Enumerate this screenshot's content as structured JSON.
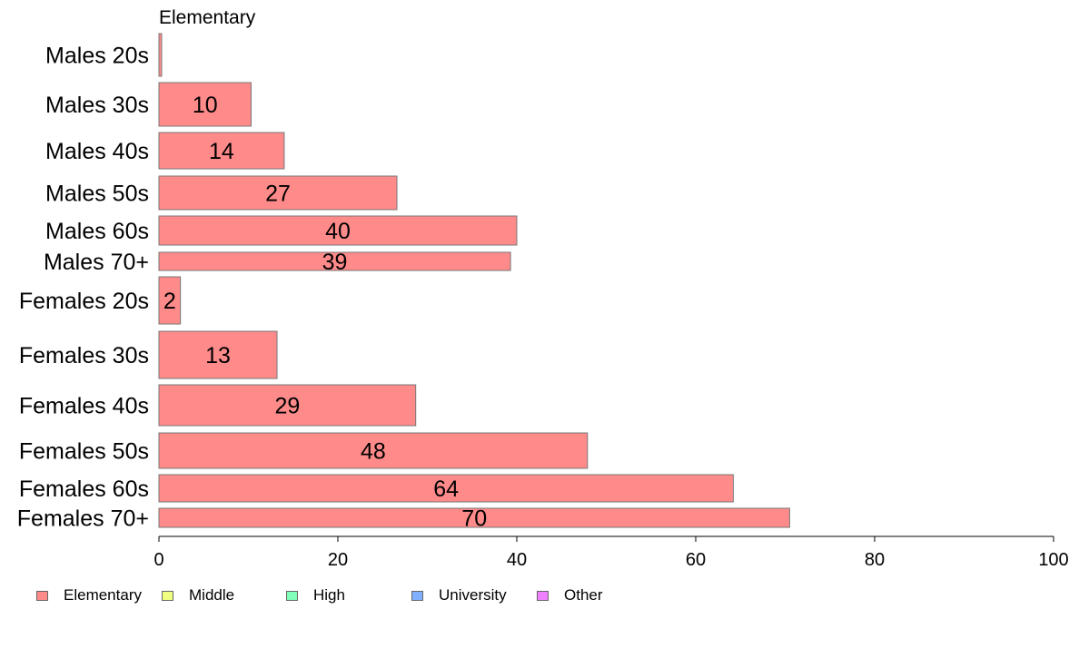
{
  "chart_data": {
    "type": "bar",
    "orientation": "horizontal",
    "title": "Elementary",
    "categories": [
      "Males 20s",
      "Males 30s",
      "Males 40s",
      "Males 50s",
      "Males 60s",
      "Males 70+",
      "Females 20s",
      "Females 30s",
      "Females 40s",
      "Females 50s",
      "Females 60s",
      "Females 70+"
    ],
    "values": [
      0.3,
      10.3,
      14,
      26.6,
      40,
      39.3,
      2.4,
      13.2,
      28.7,
      47.9,
      64.2,
      70.5
    ],
    "data_labels": [
      "",
      "10",
      "14",
      "27",
      "40",
      "39",
      "2",
      "13",
      "29",
      "48",
      "64",
      "70"
    ],
    "xlim": [
      0,
      100
    ],
    "xticks": [
      "0",
      "20",
      "40",
      "60",
      "80",
      "100"
    ],
    "bar_color": "#ff8a8a",
    "legend": [
      {
        "label": "Elementary",
        "color": "#ff8a8a"
      },
      {
        "label": "Middle",
        "color": "#f0ff80"
      },
      {
        "label": "High",
        "color": "#80ffb8"
      },
      {
        "label": "University",
        "color": "#80b0ff"
      },
      {
        "label": "Other",
        "color": "#f080ff"
      }
    ],
    "legend_position": "bottom-left",
    "grid": false
  }
}
